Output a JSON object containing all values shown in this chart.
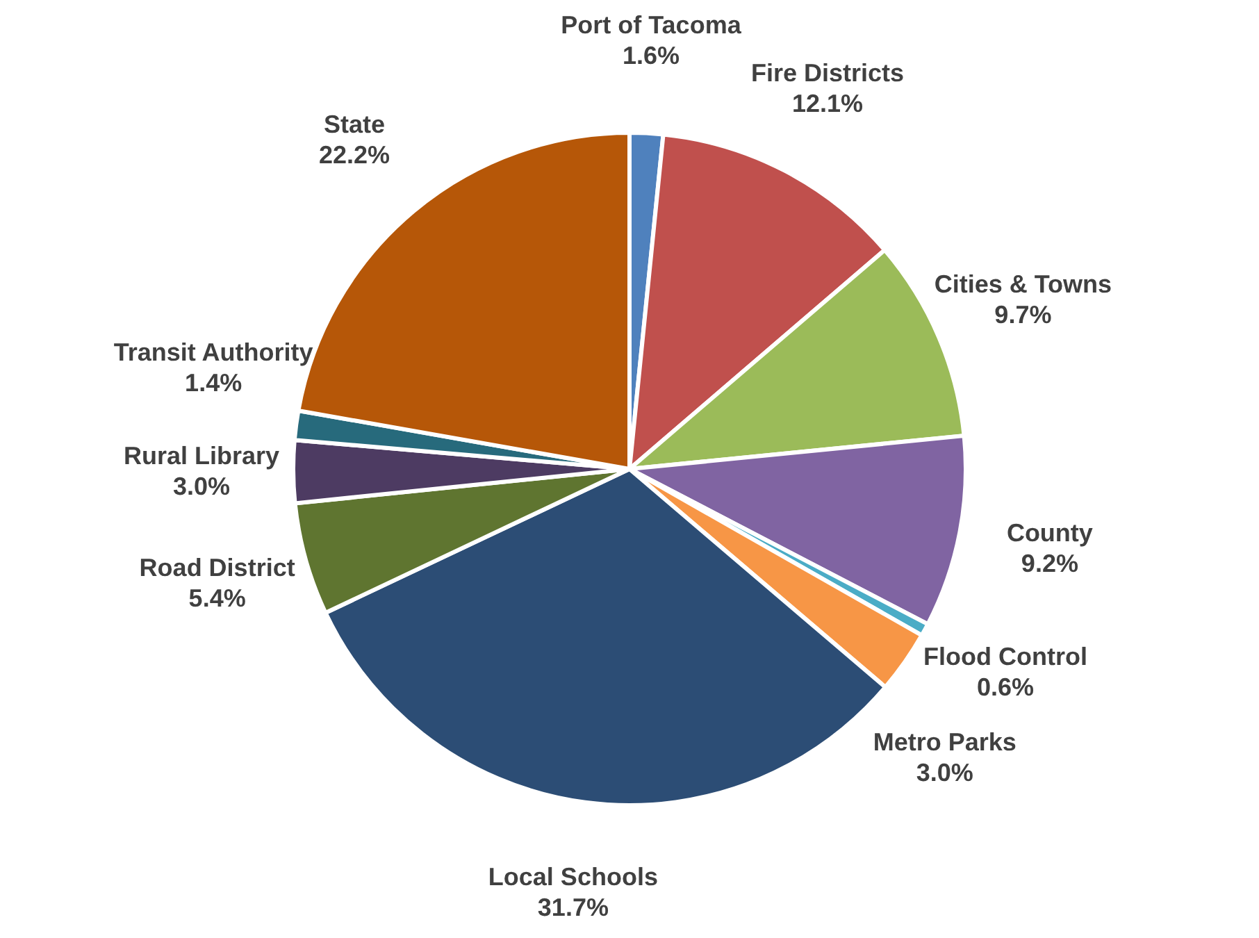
{
  "chart_data": {
    "type": "pie",
    "categories": [
      "Port of Tacoma",
      "Fire Districts",
      "Cities & Towns",
      "County",
      "Flood Control",
      "Metro Parks",
      "Local Schools",
      "Road District",
      "Rural Library",
      "Transit Authority",
      "State"
    ],
    "values": [
      1.6,
      12.1,
      9.7,
      9.2,
      0.6,
      3.0,
      31.7,
      5.4,
      3.0,
      1.4,
      22.2
    ],
    "value_labels": [
      "1.6%",
      "12.1%",
      "9.7%",
      "9.2%",
      "0.6%",
      "3.0%",
      "31.7%",
      "5.4%",
      "3.0%",
      "1.4%",
      "22.2%"
    ],
    "colors": [
      "#4f81bd",
      "#c0504d",
      "#9bbb59",
      "#8064a2",
      "#4bacc6",
      "#f79646",
      "#2c4d75",
      "#5f7530",
      "#4d3b62",
      "#276a7c",
      "#b65708"
    ]
  }
}
